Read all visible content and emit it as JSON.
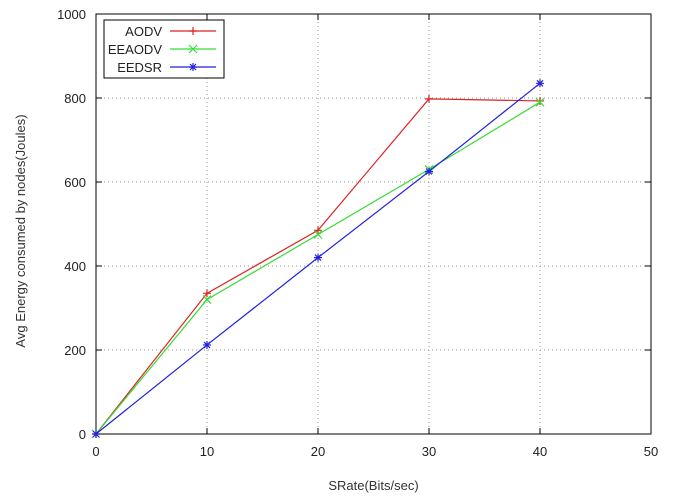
{
  "chart_data": {
    "type": "line",
    "title": "",
    "xlabel": "SRate(Bits/sec)",
    "ylabel": "Avg Energy consumed by nodes(Joules)",
    "xlim": [
      0,
      50
    ],
    "ylim": [
      0,
      1000
    ],
    "xticks": [
      "0",
      "10",
      "20",
      "30",
      "40",
      "50"
    ],
    "yticks": [
      "0",
      "200",
      "400",
      "600",
      "800",
      "1000"
    ],
    "grid": true,
    "legend_position": "top-left",
    "x": [
      0,
      10,
      20,
      30,
      40
    ],
    "series": [
      {
        "name": "AODV",
        "color": "#dd2222",
        "marker": "plus",
        "values": [
          0,
          335,
          485,
          798,
          793
        ]
      },
      {
        "name": "EEAODV",
        "color": "#33dd33",
        "marker": "x",
        "values": [
          0,
          320,
          475,
          630,
          790
        ]
      },
      {
        "name": "EEDSR",
        "color": "#2222dd",
        "marker": "star",
        "values": [
          0,
          212,
          420,
          625,
          835
        ]
      }
    ]
  }
}
